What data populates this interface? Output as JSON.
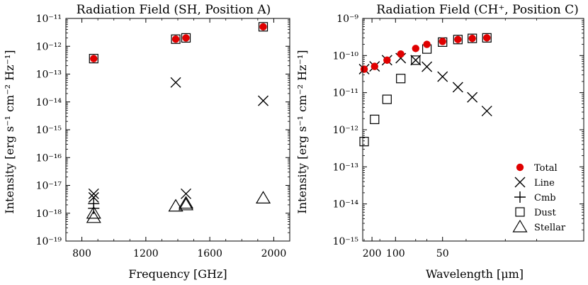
{
  "chart_data": [
    {
      "type": "scatter",
      "title": "Radiation Field (SH, Position A)",
      "xlabel": "Frequency [GHz]",
      "ylabel": "Intensity [erg s⁻¹ cm⁻² Hz⁻¹]",
      "xlim": [
        700,
        2100
      ],
      "ylim": [
        1e-19,
        1e-11
      ],
      "yscale": "log",
      "xticks": [
        800,
        1200,
        1600,
        2000
      ],
      "xtick_labels": [
        "800",
        "1200",
        "1600",
        "2000"
      ],
      "yticks": [
        1e-19,
        1e-18,
        1e-17,
        1e-16,
        1e-15,
        1e-14,
        1e-13,
        1e-12,
        1e-11
      ],
      "ytick_labels": [
        "10⁻¹⁹",
        "10⁻¹⁸",
        "10⁻¹⁷",
        "10⁻¹⁶",
        "10⁻¹⁵",
        "10⁻¹⁴",
        "10⁻¹³",
        "10⁻¹²",
        "10⁻¹¹"
      ],
      "series": [
        {
          "name": "Total",
          "marker": "filled-circle",
          "color": "#e00000",
          "points": [
            [
              874,
              3.6e-13
            ],
            [
              1387,
              1.8e-12
            ],
            [
              1451,
              2e-12
            ],
            [
              1934,
              5e-12
            ]
          ]
        },
        {
          "name": "Line",
          "marker": "x",
          "color": "#000000",
          "points": [
            [
              874,
              5e-18
            ],
            [
              874,
              3.7e-18
            ],
            [
              1387,
              5e-14
            ],
            [
              1451,
              5e-18
            ],
            [
              1934,
              1.1e-14
            ]
          ]
        },
        {
          "name": "Cmb",
          "marker": "plus",
          "color": "#000000",
          "points": [
            [
              874,
              2.2e-18
            ],
            [
              874,
              1.5e-18
            ]
          ]
        },
        {
          "name": "Dust",
          "marker": "open-square",
          "color": "#000000",
          "points": [
            [
              874,
              3.6e-13
            ],
            [
              1387,
              1.8e-12
            ],
            [
              1451,
              2e-12
            ],
            [
              1934,
              5e-12
            ]
          ]
        },
        {
          "name": "Stellar",
          "marker": "open-triangle",
          "color": "#000000",
          "points": [
            [
              874,
              1e-18
            ],
            [
              874,
              7e-19
            ],
            [
              1387,
              1.8e-18
            ],
            [
              1451,
              2e-18
            ],
            [
              1451,
              2.3e-18
            ],
            [
              1934,
              3.5e-18
            ]
          ]
        }
      ]
    },
    {
      "type": "scatter",
      "title": "Radiation Field (CH⁺, Position C)",
      "xlabel": "Wavelength [μm]",
      "ylabel": "Intensity [erg s⁻¹ cm⁻² Hz⁻¹]",
      "xlim": [
        330,
        20
      ],
      "ylim": [
        1e-15,
        1e-09
      ],
      "yscale": "log",
      "xscale": "reciprocal",
      "xticks": [
        200,
        100,
        50
      ],
      "xtick_labels": [
        "200",
        "100",
        "50"
      ],
      "yticks": [
        1e-15,
        1e-14,
        1e-13,
        1e-12,
        1e-11,
        1e-10,
        1e-09
      ],
      "ytick_labels": [
        "10⁻¹⁵",
        "10⁻¹⁴",
        "10⁻¹³",
        "10⁻¹²",
        "10⁻¹¹",
        "10⁻¹⁰",
        "10⁻⁹"
      ],
      "legend": {
        "placement": "bottom-right",
        "entries": [
          "Total",
          "Line",
          "Cmb",
          "Dust",
          "Stellar"
        ]
      },
      "series": [
        {
          "name": "Total",
          "marker": "filled-circle",
          "color": "#e00000",
          "points": [
            [
              300,
              4.3e-11
            ],
            [
              180,
              5.1e-11
            ],
            [
              122,
              7.5e-11
            ],
            [
              90,
              1.1e-10
            ],
            [
              70,
              1.55e-10
            ],
            [
              60,
              2e-10
            ],
            [
              50,
              2.4e-10
            ],
            [
              43,
              2.7e-10
            ],
            [
              38,
              2.9e-10
            ],
            [
              34,
              3e-10
            ]
          ]
        },
        {
          "name": "Line",
          "marker": "x",
          "color": "#000000",
          "points": [
            [
              300,
              4.3e-11
            ],
            [
              180,
              5.1e-11
            ],
            [
              122,
              7.5e-11
            ],
            [
              90,
              8.5e-11
            ],
            [
              70,
              7.5e-11
            ],
            [
              60,
              5e-11
            ],
            [
              50,
              2.7e-11
            ],
            [
              43,
              1.4e-11
            ],
            [
              38,
              7.5e-12
            ],
            [
              34,
              3.2e-12
            ]
          ]
        },
        {
          "name": "Cmb",
          "marker": "plus",
          "color": "#000000",
          "points": []
        },
        {
          "name": "Dust",
          "marker": "open-square",
          "color": "#000000",
          "points": [
            [
              300,
              4.8e-13
            ],
            [
              180,
              1.9e-12
            ],
            [
              122,
              6.6e-12
            ],
            [
              90,
              2.4e-11
            ],
            [
              70,
              7.5e-11
            ],
            [
              60,
              1.5e-10
            ],
            [
              50,
              2.3e-10
            ],
            [
              43,
              2.7e-10
            ],
            [
              38,
              2.9e-10
            ],
            [
              34,
              3e-10
            ]
          ]
        },
        {
          "name": "Stellar",
          "marker": "open-triangle",
          "color": "#000000",
          "points": []
        }
      ]
    }
  ]
}
